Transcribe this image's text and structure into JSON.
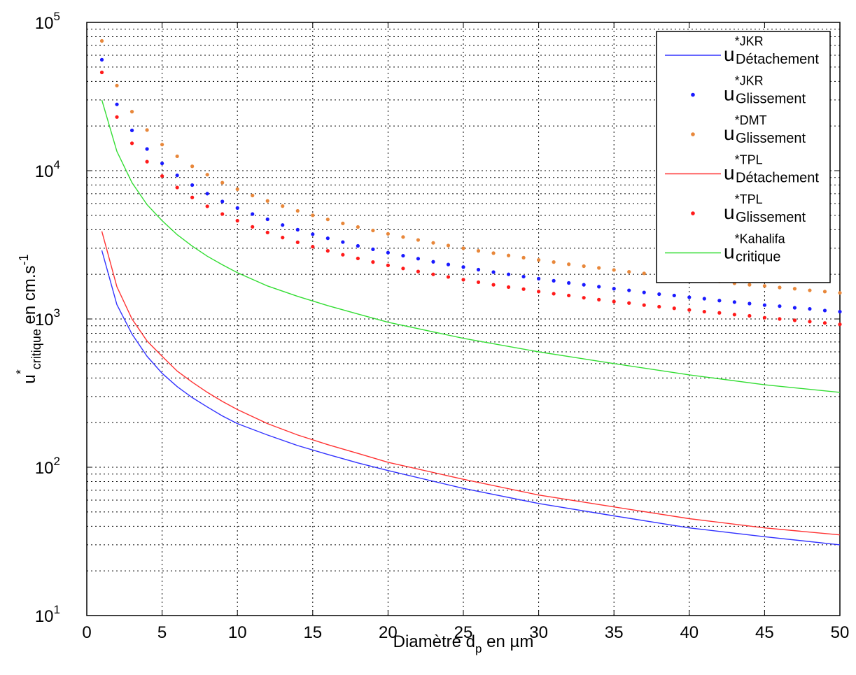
{
  "chart_data": {
    "type": "scatter",
    "title": "",
    "xlabel": {
      "main": "Diamètre d",
      "sub": "p",
      "tail": " en µm"
    },
    "ylabel": {
      "main": "u",
      "sup": "*",
      "sub": "critique",
      "tail": " en cm.s",
      "exp": "-1"
    },
    "x_range": [
      0,
      50
    ],
    "y_range": [
      10,
      100000
    ],
    "y_scale": "log",
    "grid": true,
    "grid_style": "dotted",
    "x_ticks": [
      0,
      5,
      10,
      15,
      20,
      25,
      30,
      35,
      40,
      45,
      50
    ],
    "y_ticks": [
      {
        "base": "10",
        "exp": "1",
        "value": 10
      },
      {
        "base": "10",
        "exp": "2",
        "value": 100
      },
      {
        "base": "10",
        "exp": "3",
        "value": 1000
      },
      {
        "base": "10",
        "exp": "4",
        "value": 10000
      },
      {
        "base": "10",
        "exp": "5",
        "value": 100000
      }
    ],
    "legend_position": "top-right",
    "series": [
      {
        "name_main": "u",
        "name_sup": "*JKR",
        "name_sub": "Détachement",
        "style": "line",
        "color": "#3333ff",
        "x": [
          1,
          2,
          3,
          4,
          5,
          6,
          7,
          8,
          9,
          10,
          12,
          14,
          16,
          18,
          20,
          25,
          30,
          35,
          40,
          45,
          50
        ],
        "y": [
          2900,
          1250,
          790,
          560,
          430,
          350,
          295,
          255,
          222,
          197,
          165,
          140,
          122,
          107,
          95,
          72,
          57,
          47,
          39,
          34,
          30
        ]
      },
      {
        "name_main": "u",
        "name_sup": "*JKR",
        "name_sub": "Glissement",
        "style": "markers",
        "color": "#1a1aff",
        "x": [
          1,
          2,
          3,
          4,
          5,
          6,
          7,
          8,
          9,
          10,
          11,
          12,
          13,
          14,
          15,
          16,
          17,
          18,
          19,
          20,
          21,
          22,
          23,
          24,
          25,
          26,
          27,
          28,
          29,
          30,
          31,
          32,
          33,
          34,
          35,
          36,
          37,
          38,
          39,
          40,
          41,
          42,
          43,
          44,
          45,
          46,
          47,
          48,
          49,
          50
        ],
        "y": [
          56000,
          28000,
          18700,
          14000,
          11200,
          9300,
          8000,
          7000,
          6200,
          5600,
          5100,
          4700,
          4300,
          4000,
          3730,
          3500,
          3300,
          3110,
          2950,
          2800,
          2670,
          2550,
          2430,
          2330,
          2240,
          2150,
          2070,
          2000,
          1930,
          1870,
          1810,
          1750,
          1700,
          1650,
          1600,
          1560,
          1510,
          1470,
          1440,
          1400,
          1370,
          1330,
          1300,
          1270,
          1240,
          1220,
          1190,
          1170,
          1140,
          1120
        ]
      },
      {
        "name_main": "u",
        "name_sup": "*DMT",
        "name_sub": "Glissement",
        "style": "markers",
        "color": "#e8873a",
        "x": [
          1,
          2,
          3,
          4,
          5,
          6,
          7,
          8,
          9,
          10,
          11,
          12,
          13,
          14,
          15,
          16,
          17,
          18,
          19,
          20,
          21,
          22,
          23,
          24,
          25,
          26,
          27,
          28,
          29,
          30,
          31,
          32,
          33,
          34,
          35,
          36,
          37,
          38,
          39,
          40,
          41,
          42,
          43,
          44,
          45,
          46,
          47,
          48,
          49,
          50
        ],
        "y": [
          75000,
          37500,
          25000,
          18800,
          15000,
          12500,
          10700,
          9400,
          8300,
          7500,
          6800,
          6250,
          5770,
          5360,
          5000,
          4690,
          4410,
          4170,
          3950,
          3750,
          3570,
          3410,
          3260,
          3130,
          3000,
          2880,
          2780,
          2680,
          2590,
          2500,
          2420,
          2340,
          2270,
          2210,
          2140,
          2080,
          2030,
          1970,
          1920,
          1880,
          1830,
          1790,
          1740,
          1700,
          1670,
          1630,
          1600,
          1560,
          1530,
          1500
        ]
      },
      {
        "name_main": "u",
        "name_sup": "*TPL",
        "name_sub": "Détachement",
        "style": "line",
        "color": "#ff3333",
        "x": [
          1,
          2,
          3,
          4,
          5,
          6,
          7,
          8,
          9,
          10,
          12,
          14,
          16,
          18,
          20,
          25,
          30,
          35,
          40,
          45,
          50
        ],
        "y": [
          3900,
          1650,
          1000,
          710,
          560,
          445,
          375,
          320,
          278,
          245,
          197,
          165,
          142,
          124,
          108,
          83,
          65,
          54,
          45,
          39,
          35
        ]
      },
      {
        "name_main": "u",
        "name_sup": "*TPL",
        "name_sub": "Glissement",
        "style": "markers",
        "color": "#ff1a1a",
        "x": [
          1,
          2,
          3,
          4,
          5,
          6,
          7,
          8,
          9,
          10,
          11,
          12,
          13,
          14,
          15,
          16,
          17,
          18,
          19,
          20,
          21,
          22,
          23,
          24,
          25,
          26,
          27,
          28,
          29,
          30,
          31,
          32,
          33,
          34,
          35,
          36,
          37,
          38,
          39,
          40,
          41,
          42,
          43,
          44,
          45,
          46,
          47,
          48,
          49,
          50
        ],
        "y": [
          46000,
          23000,
          15300,
          11500,
          9200,
          7700,
          6600,
          5750,
          5100,
          4600,
          4180,
          3830,
          3540,
          3290,
          3070,
          2880,
          2710,
          2560,
          2420,
          2300,
          2190,
          2090,
          2000,
          1920,
          1840,
          1770,
          1700,
          1640,
          1590,
          1530,
          1480,
          1440,
          1390,
          1350,
          1310,
          1280,
          1240,
          1210,
          1180,
          1150,
          1120,
          1100,
          1070,
          1050,
          1020,
          1000,
          980,
          960,
          940,
          920
        ]
      },
      {
        "name_main": "u",
        "name_sup": "*Kahalifa",
        "name_sub": "critique",
        "style": "line",
        "color": "#33dd33",
        "x": [
          1,
          2,
          3,
          4,
          5,
          6,
          7,
          8,
          9,
          10,
          12,
          14,
          16,
          18,
          20,
          25,
          30,
          35,
          40,
          45,
          50
        ],
        "y": [
          30000,
          13500,
          8300,
          5900,
          4600,
          3700,
          3100,
          2650,
          2320,
          2050,
          1670,
          1420,
          1230,
          1080,
          950,
          740,
          600,
          500,
          420,
          360,
          320
        ]
      }
    ]
  }
}
